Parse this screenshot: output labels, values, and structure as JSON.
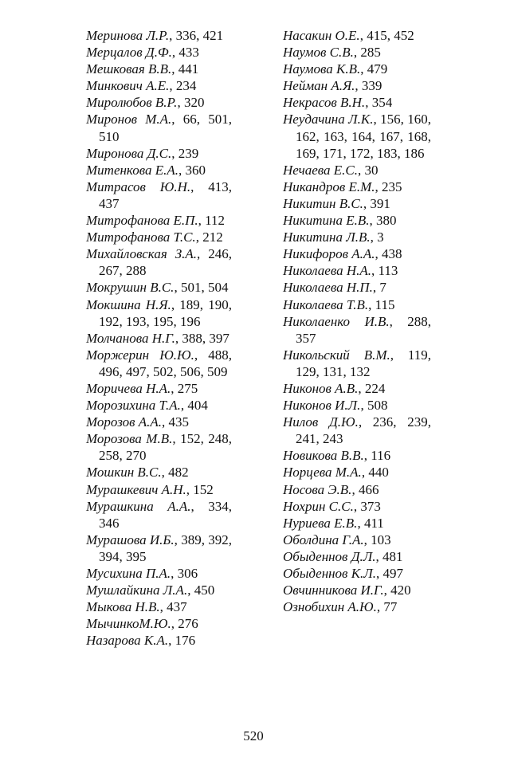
{
  "columns": [
    {
      "entries": [
        {
          "name": "Меринова Л.Р.",
          "pages": "336, 421"
        },
        {
          "name": "Мерцалов Д.Ф.",
          "pages": "433"
        },
        {
          "name": "Мешковая В.В.",
          "pages": "441"
        },
        {
          "name": "Минкович А.Е.",
          "pages": "234"
        },
        {
          "name": "Миролюбов В.Р.",
          "pages": "320"
        },
        {
          "name": "Миронов М.А.",
          "pages": "66, 501, 510"
        },
        {
          "name": "Миронова Д.С.",
          "pages": "239"
        },
        {
          "name": "Митенкова Е.А.",
          "pages": "360"
        },
        {
          "name": "Митрасов Ю.Н.",
          "pages": "413, 437"
        },
        {
          "name": "Митрофанова Е.П.",
          "pages": "112"
        },
        {
          "name": "Митрофанова Т.С.",
          "pages": "212"
        },
        {
          "name": "Михайловская З.А.",
          "pages": "246, 267, 288"
        },
        {
          "name": "Мокрушин В.С.",
          "pages": "501, 504"
        },
        {
          "name": "Мокшина Н.Я.",
          "pages": "189, 190, 192, 193, 195, 196"
        },
        {
          "name": "Молчанова Н.Г.",
          "pages": "388, 397"
        },
        {
          "name": "Моржерин Ю.Ю.",
          "pages": "488, 496, 497, 502, 506, 509"
        },
        {
          "name": "Моричева Н.А.",
          "pages": "275"
        },
        {
          "name": "Морозихина Т.А.",
          "pages": "404"
        },
        {
          "name": "Морозов А.А.",
          "pages": "435"
        },
        {
          "name": "Морозова М.В.",
          "pages": "152, 248, 258, 270"
        },
        {
          "name": "Мошкин В.С.",
          "pages": "482"
        },
        {
          "name": "Мурашкевич А.Н.",
          "pages": "152"
        },
        {
          "name": "Мурашкина А.А.",
          "pages": "334, 346"
        },
        {
          "name": "Мурашова И.Б.",
          "pages": "389, 392, 394, 395"
        },
        {
          "name": "Мусихина П.А.",
          "pages": "306"
        },
        {
          "name": "Мушлайкина Л.А.",
          "pages": "450"
        },
        {
          "name": "Мыкова Н.В.",
          "pages": "437"
        },
        {
          "name": "МычинкоМ.Ю.",
          "pages": "276"
        },
        {
          "name": "Назарова К.А.",
          "pages": "176"
        }
      ]
    },
    {
      "entries": [
        {
          "name": "Насакин О.Е.",
          "pages": "415, 452"
        },
        {
          "name": "Наумов С.В.",
          "pages": "285"
        },
        {
          "name": "Наумова К.В.",
          "pages": "479"
        },
        {
          "name": "Нейман А.Я.",
          "pages": "339"
        },
        {
          "name": "Некрасов В.Н.",
          "pages": "354"
        },
        {
          "name": "Неудачина Л.К.",
          "pages": "156, 160, 162, 163, 164, 167, 168, 169, 171, 172, 183, 186"
        },
        {
          "name": "Нечаева Е.С.",
          "pages": "30"
        },
        {
          "name": "Никандров Е.М.",
          "pages": "235"
        },
        {
          "name": "Никитин В.С.",
          "pages": "391"
        },
        {
          "name": "Никитина Е.В.",
          "pages": "380"
        },
        {
          "name": "Никитина Л.В.",
          "pages": "3"
        },
        {
          "name": "Никифоров А.А.",
          "pages": "438"
        },
        {
          "name": "Николаева Н.А.",
          "pages": "113"
        },
        {
          "name": "Николаева Н.П.",
          "pages": "7"
        },
        {
          "name": "Николаева Т.В.",
          "pages": "115"
        },
        {
          "name": "Николаенко И.В.",
          "pages": "288, 357"
        },
        {
          "name": "Никольский В.М.",
          "pages": "119, 129, 131, 132"
        },
        {
          "name": "Никонов А.В.",
          "pages": "224"
        },
        {
          "name": "Никонов И.Л.",
          "pages": "508"
        },
        {
          "name": "Нилов Д.Ю.",
          "pages": "236, 239, 241, 243"
        },
        {
          "name": "Новикова В.В.",
          "pages": "116"
        },
        {
          "name": "Норцева М.А.",
          "pages": "440"
        },
        {
          "name": "Носова Э.В.",
          "pages": "466"
        },
        {
          "name": "Нохрин С.С.",
          "pages": "373"
        },
        {
          "name": "Нуриева Е.В.",
          "pages": "411"
        },
        {
          "name": "Оболдина Г.А.",
          "pages": "103"
        },
        {
          "name": "Обыденнов Д.Л.",
          "pages": "481"
        },
        {
          "name": "Обыденнов К.Л.",
          "pages": "497"
        },
        {
          "name": "Овчинникова И.Г.",
          "pages": "420"
        },
        {
          "name": "Ознобихин А.Ю.",
          "pages": "77"
        }
      ]
    }
  ],
  "page_number": "520"
}
